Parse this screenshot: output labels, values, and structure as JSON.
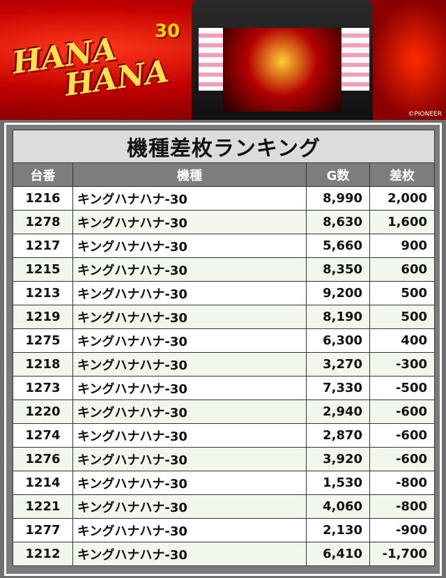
{
  "banner": {
    "logo_text": [
      "HANA",
      "HANA"
    ],
    "badge": "30",
    "copyright": "©PIONEER"
  },
  "table": {
    "title": "機種差枚ランキング",
    "headers": [
      "台番",
      "機種",
      "G数",
      "差枚"
    ],
    "rows": [
      [
        "1216",
        "キングハナハナ-30",
        "8,990",
        "2,000"
      ],
      [
        "1278",
        "キングハナハナ-30",
        "8,630",
        "1,600"
      ],
      [
        "1217",
        "キングハナハナ-30",
        "5,660",
        "900"
      ],
      [
        "1215",
        "キングハナハナ-30",
        "8,350",
        "600"
      ],
      [
        "1213",
        "キングハナハナ-30",
        "9,200",
        "500"
      ],
      [
        "1219",
        "キングハナハナ-30",
        "8,190",
        "500"
      ],
      [
        "1275",
        "キングハナハナ-30",
        "6,300",
        "400"
      ],
      [
        "1218",
        "キングハナハナ-30",
        "3,270",
        "-300"
      ],
      [
        "1273",
        "キングハナハナ-30",
        "7,330",
        "-500"
      ],
      [
        "1220",
        "キングハナハナ-30",
        "2,940",
        "-600"
      ],
      [
        "1274",
        "キングハナハナ-30",
        "2,870",
        "-600"
      ],
      [
        "1276",
        "キングハナハナ-30",
        "3,920",
        "-600"
      ],
      [
        "1214",
        "キングハナハナ-30",
        "1,530",
        "-800"
      ],
      [
        "1221",
        "キングハナハナ-30",
        "4,060",
        "-800"
      ],
      [
        "1277",
        "キングハナハナ-30",
        "2,130",
        "-900"
      ],
      [
        "1212",
        "キングハナハナ-30",
        "6,410",
        "-1,700"
      ]
    ]
  }
}
